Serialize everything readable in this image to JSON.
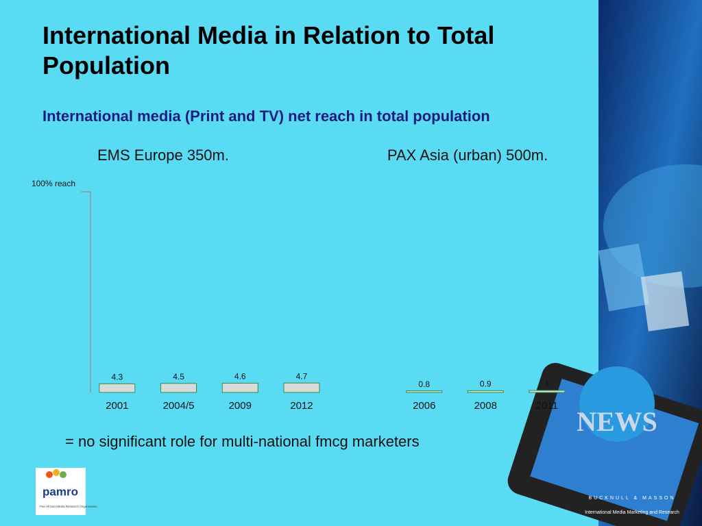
{
  "slide": {
    "title": "International Media in Relation to Total Population",
    "subtitle": "International media (Print and TV) net reach in total population",
    "conclusion": "= no significant role for multi-national fmcg marketers",
    "logo_name": "pamro",
    "logo_caption": "Pan African Media Research Organisation",
    "brand": "BUCKNULL & MASSON",
    "brand_caption": "International Media Marketing and Research"
  },
  "chart_data": [
    {
      "type": "bar",
      "title": "EMS Europe 350m.",
      "categories": [
        "2001",
        "2004/5",
        "2009",
        "2012"
      ],
      "values": [
        4.3,
        4.5,
        4.6,
        4.7
      ],
      "color": "#d8dcd8",
      "ylim": [
        0,
        100
      ],
      "yticks": [
        {
          "value": 100,
          "label": "100% reach"
        }
      ]
    },
    {
      "type": "bar",
      "title": "PAX Asia (urban) 500m.",
      "categories": [
        "2006",
        "2008",
        "2011"
      ],
      "values": [
        0.8,
        0.9,
        1
      ],
      "color": "#cfe8c8",
      "ylim": [
        0,
        100
      ]
    }
  ]
}
